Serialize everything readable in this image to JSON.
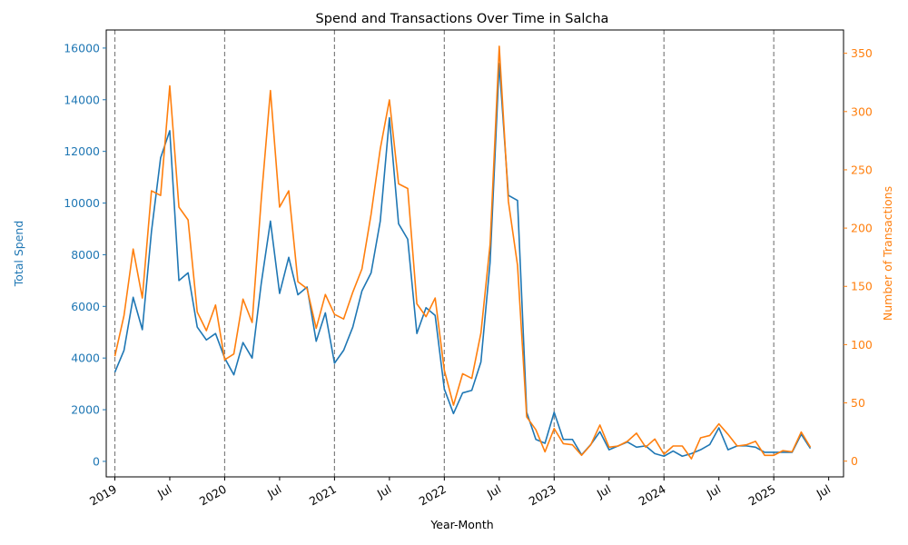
{
  "chart_data": {
    "type": "line",
    "title": "Spend and Transactions Over Time in Salcha",
    "xlabel": "Year-Month",
    "ylabel_left": "Total Spend",
    "ylabel_right": "Number of Transactions",
    "x": [
      "2019-01",
      "2019-02",
      "2019-03",
      "2019-04",
      "2019-05",
      "2019-06",
      "2019-07",
      "2019-08",
      "2019-09",
      "2019-10",
      "2019-11",
      "2019-12",
      "2020-01",
      "2020-02",
      "2020-03",
      "2020-04",
      "2020-05",
      "2020-06",
      "2020-07",
      "2020-08",
      "2020-09",
      "2020-10",
      "2020-11",
      "2020-12",
      "2021-01",
      "2021-02",
      "2021-03",
      "2021-04",
      "2021-05",
      "2021-06",
      "2021-07",
      "2021-08",
      "2021-09",
      "2021-10",
      "2021-11",
      "2021-12",
      "2022-01",
      "2022-02",
      "2022-03",
      "2022-04",
      "2022-05",
      "2022-06",
      "2022-07",
      "2022-08",
      "2022-09",
      "2022-10",
      "2022-11",
      "2022-12",
      "2023-01",
      "2023-02",
      "2023-03",
      "2023-04",
      "2023-05",
      "2023-06",
      "2023-07",
      "2023-08",
      "2023-09",
      "2023-10",
      "2023-11",
      "2023-12",
      "2024-01",
      "2024-02",
      "2024-03",
      "2024-04",
      "2024-05",
      "2024-06",
      "2024-07",
      "2024-08",
      "2024-09",
      "2024-10",
      "2024-11",
      "2024-12",
      "2025-01",
      "2025-02",
      "2025-03",
      "2025-04",
      "2025-05"
    ],
    "series": [
      {
        "name": "Total Spend",
        "axis": "left",
        "color": "#1f77b4",
        "values": [
          3450,
          4300,
          6350,
          5100,
          8900,
          11750,
          12800,
          7000,
          7300,
          5200,
          4700,
          4950,
          4000,
          3350,
          4600,
          4000,
          6900,
          9300,
          6500,
          7900,
          6450,
          6750,
          4650,
          5750,
          3800,
          4300,
          5200,
          6600,
          7300,
          9300,
          13300,
          9200,
          8600,
          4950,
          5950,
          5650,
          2800,
          1850,
          2650,
          2750,
          3850,
          7700,
          15400,
          10300,
          10100,
          1900,
          850,
          700,
          1900,
          850,
          850,
          250,
          650,
          1150,
          450,
          600,
          750,
          550,
          600,
          300,
          200,
          400,
          200,
          300,
          450,
          650,
          1300,
          450,
          600,
          600,
          550,
          350,
          350,
          350,
          350,
          1050,
          500
        ]
      },
      {
        "name": "Number of Transactions",
        "axis": "right",
        "color": "#ff7f0e",
        "values": [
          90,
          125,
          182,
          140,
          232,
          228,
          322,
          218,
          207,
          128,
          112,
          134,
          87,
          92,
          139,
          119,
          225,
          318,
          218,
          232,
          154,
          148,
          114,
          143,
          126,
          122,
          145,
          165,
          212,
          268,
          310,
          238,
          234,
          135,
          124,
          140,
          78,
          48,
          75,
          71,
          110,
          186,
          356,
          223,
          168,
          38,
          27,
          8,
          28,
          15,
          14,
          5,
          14,
          31,
          12,
          13,
          17,
          24,
          12,
          19,
          6,
          13,
          13,
          2,
          20,
          22,
          32,
          23,
          13,
          14,
          17,
          5,
          5,
          9,
          8,
          25,
          12
        ]
      }
    ],
    "ylim_left": [
      -600,
      16700
    ],
    "ylim_right": [
      -13.5,
      370
    ],
    "yticks_left": [
      "0",
      "2000",
      "4000",
      "6000",
      "8000",
      "10000",
      "12000",
      "14000",
      "16000"
    ],
    "yticks_right": [
      "0",
      "50",
      "100",
      "150",
      "200",
      "250",
      "300",
      "350"
    ],
    "xticks": [
      {
        "date": "2019-01",
        "label": "2019"
      },
      {
        "date": "2019-07",
        "label": "Jul"
      },
      {
        "date": "2020-01",
        "label": "2020"
      },
      {
        "date": "2020-07",
        "label": "Jul"
      },
      {
        "date": "2021-01",
        "label": "2021"
      },
      {
        "date": "2021-07",
        "label": "Jul"
      },
      {
        "date": "2022-01",
        "label": "2022"
      },
      {
        "date": "2022-07",
        "label": "Jul"
      },
      {
        "date": "2023-01",
        "label": "2023"
      },
      {
        "date": "2023-07",
        "label": "Jul"
      },
      {
        "date": "2024-01",
        "label": "2024"
      },
      {
        "date": "2024-07",
        "label": "Jul"
      },
      {
        "date": "2025-01",
        "label": "2025"
      },
      {
        "date": "2025-07",
        "label": "Jul"
      }
    ],
    "vlines": [
      "2019-01",
      "2020-01",
      "2021-01",
      "2022-01",
      "2023-01",
      "2024-01",
      "2025-01"
    ],
    "grid": false,
    "legend": "none"
  }
}
